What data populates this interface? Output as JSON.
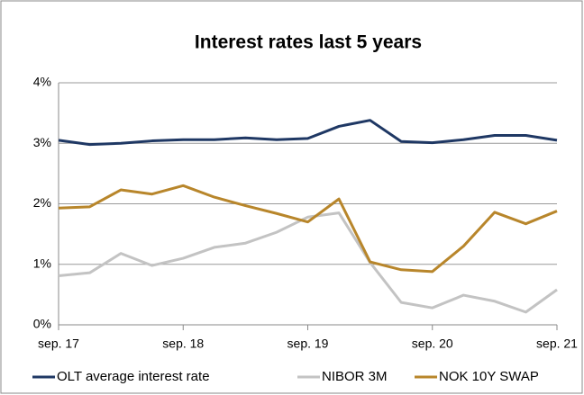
{
  "chart_data": {
    "type": "line",
    "title": "Interest rates last 5 years",
    "categories": [
      "sep. 17",
      null,
      null,
      null,
      "sep. 18",
      null,
      null,
      null,
      "sep. 19",
      null,
      null,
      null,
      "sep. 20",
      null,
      null,
      null,
      "sep. 21"
    ],
    "series": [
      {
        "name": "OLT average interest rate",
        "color": "#1f3864",
        "values": [
          3.05,
          2.98,
          3.0,
          3.04,
          3.06,
          3.06,
          3.09,
          3.06,
          3.08,
          3.28,
          3.38,
          3.03,
          3.01,
          3.06,
          3.13,
          3.13,
          3.05
        ]
      },
      {
        "name": "NIBOR 3M",
        "color": "#c3c3c3",
        "values": [
          0.81,
          0.86,
          1.18,
          0.98,
          1.1,
          1.28,
          1.35,
          1.53,
          1.78,
          1.85,
          1.03,
          0.37,
          0.28,
          0.49,
          0.39,
          0.21,
          0.58
        ]
      },
      {
        "name": "NOK 10Y SWAP",
        "color": "#b8862b",
        "values": [
          1.93,
          1.95,
          2.23,
          2.16,
          2.3,
          2.11,
          1.97,
          1.84,
          1.7,
          2.08,
          1.04,
          0.91,
          0.88,
          1.3,
          1.86,
          1.67,
          1.88
        ]
      }
    ],
    "ylim": [
      0,
      4
    ],
    "yticks": [
      {
        "value": 0,
        "label": "0%"
      },
      {
        "value": 1,
        "label": "1%"
      },
      {
        "value": 2,
        "label": "2%"
      },
      {
        "value": 3,
        "label": "3%"
      },
      {
        "value": 4,
        "label": "4%"
      }
    ],
    "grid": true,
    "legend": "bottom"
  }
}
